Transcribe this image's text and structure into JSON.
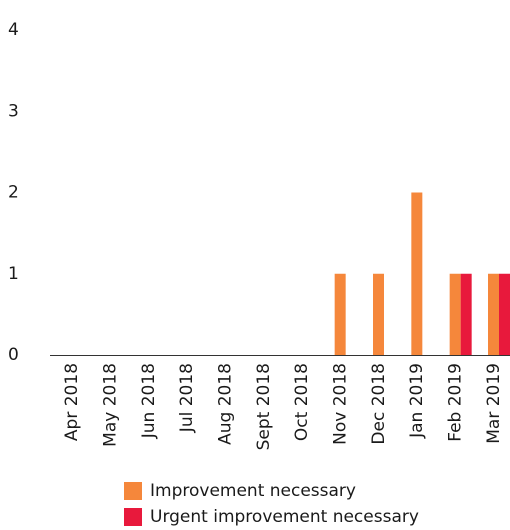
{
  "chart_data": {
    "type": "bar",
    "categories": [
      "Apr 2018",
      "May 2018",
      "Jun 2018",
      "Jul 2018",
      "Aug 2018",
      "Sept 2018",
      "Oct 2018",
      "Nov 2018",
      "Dec 2018",
      "Jan 2019",
      "Feb 2019",
      "Mar 2019"
    ],
    "series": [
      {
        "name": "Improvement necessary",
        "color": "#F5873B",
        "values": [
          0,
          0,
          0,
          0,
          0,
          0,
          0,
          1,
          1,
          2,
          1,
          1
        ]
      },
      {
        "name": "Urgent improvement necessary",
        "color": "#E8193C",
        "values": [
          0,
          0,
          0,
          0,
          0,
          0,
          0,
          0,
          0,
          0,
          1,
          1
        ]
      }
    ],
    "yticks": [
      "0",
      "1",
      "2",
      "3",
      "4"
    ],
    "ylim": [
      0,
      4
    ],
    "grid": false,
    "legend_position": "bottom"
  },
  "legend": {
    "items": [
      {
        "label": "Improvement necessary",
        "color": "#F5873B"
      },
      {
        "label": "Urgent improvement necessary",
        "color": "#E8193C"
      }
    ]
  }
}
